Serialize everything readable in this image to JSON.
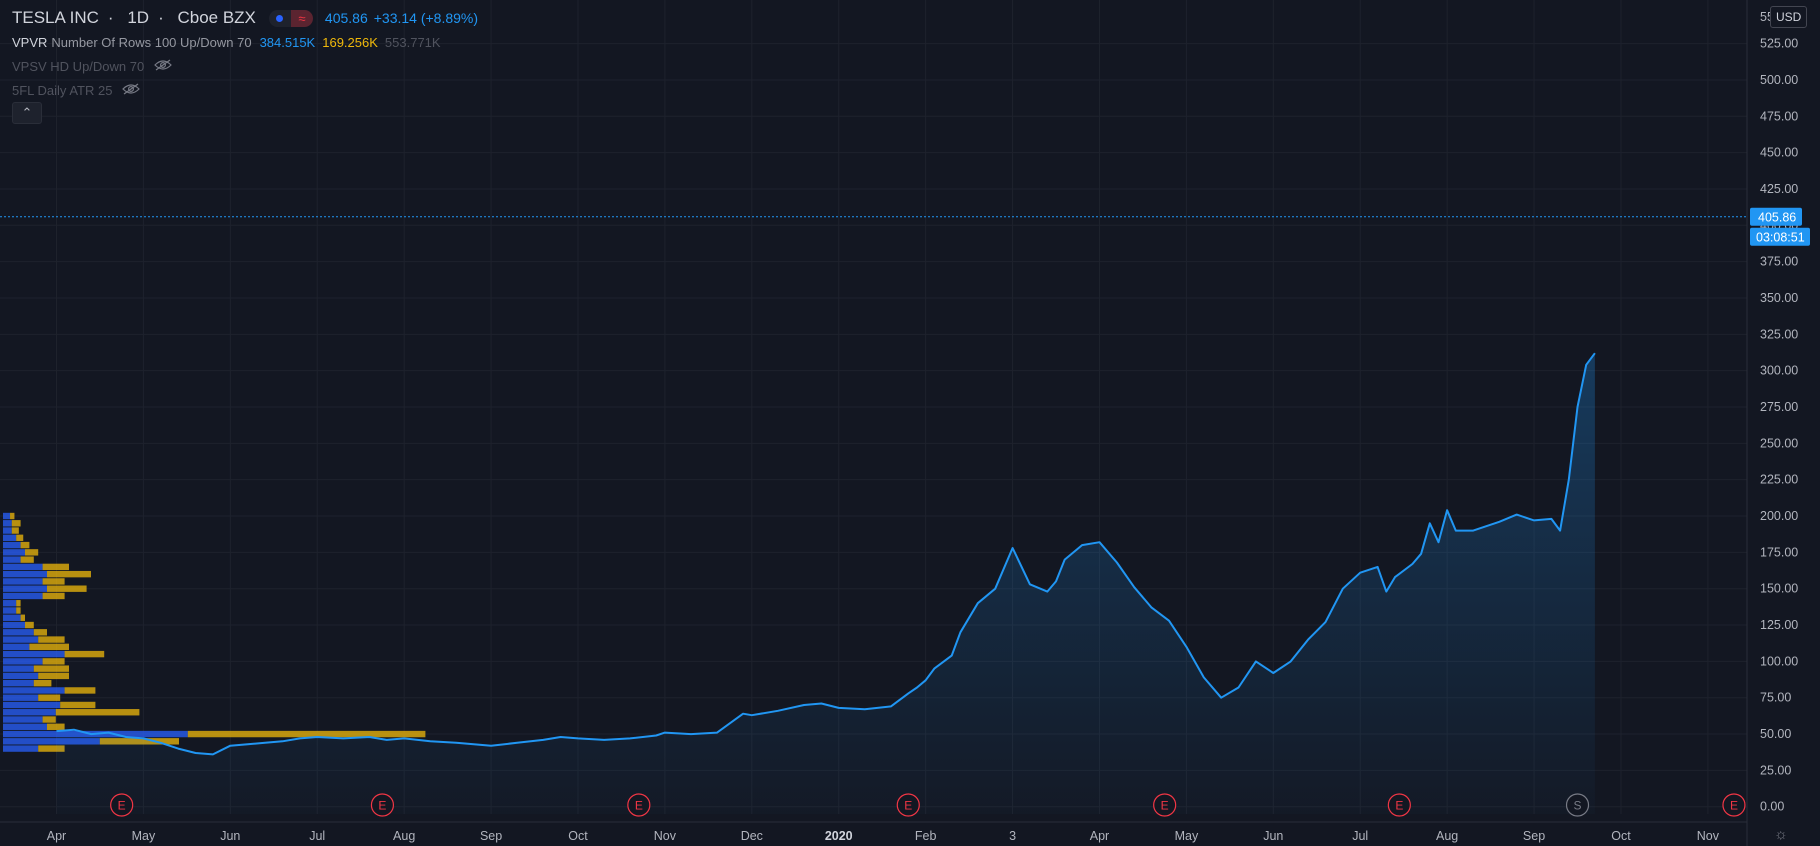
{
  "legend": {
    "symbol": "TESLA INC",
    "interval": "1D",
    "exchange": "Cboe BZX",
    "price": "405.86",
    "change": "+33.14 (+8.89%)"
  },
  "indicators": [
    {
      "name": "VPVR",
      "params": "Number Of Rows 100 Up/Down 70",
      "v1": "384.515K",
      "v2": "169.256K",
      "v3": "553.771K"
    },
    {
      "name": "VPSV HD Up/Down 70"
    },
    {
      "name": "5FL Daily ATR 25"
    }
  ],
  "currency": "USD",
  "price_scale": {
    "current_price": "405.86",
    "countdown": "03:08:51",
    "top_partial_label": "55"
  },
  "colors": {
    "background": "#131722",
    "line": "#2196f3",
    "up_volume": "#2962ff",
    "down_volume": "#f0b90b",
    "earnings": "#f23645",
    "split": "#787b86"
  },
  "chart_data": {
    "type": "area",
    "title": "TESLA INC, 1D, Cboe BZX",
    "ylim": [
      -5,
      555
    ],
    "y_ticks": [
      "0.00",
      "25.00",
      "50.00",
      "75.00",
      "100.00",
      "125.00",
      "150.00",
      "175.00",
      "200.00",
      "225.00",
      "250.00",
      "275.00",
      "300.00",
      "325.00",
      "350.00",
      "375.00",
      "400.00",
      "425.00",
      "450.00",
      "475.00",
      "500.00",
      "525.00"
    ],
    "x_ticks": [
      "Apr",
      "May",
      "Jun",
      "Jul",
      "Aug",
      "Sep",
      "Oct",
      "Nov",
      "Dec",
      "2020",
      "Feb",
      "3",
      "Apr",
      "May",
      "Jun",
      "Jul",
      "Aug",
      "Sep",
      "Oct",
      "Nov"
    ],
    "x_tick_times": [
      0,
      1,
      2,
      3,
      4,
      5,
      6,
      7,
      8,
      9,
      10,
      11,
      12,
      13,
      14,
      15,
      16,
      17,
      18,
      19
    ],
    "series": [
      {
        "name": "TSLA",
        "x": [
          0.0,
          0.2,
          0.4,
          0.6,
          0.8,
          1.0,
          1.2,
          1.4,
          1.6,
          1.8,
          2.0,
          2.2,
          2.4,
          2.6,
          2.8,
          3.0,
          3.3,
          3.6,
          3.8,
          4.0,
          4.3,
          4.6,
          4.8,
          5.0,
          5.3,
          5.6,
          5.8,
          6.0,
          6.3,
          6.6,
          6.9,
          7.0,
          7.3,
          7.6,
          7.9,
          8.0,
          8.3,
          8.6,
          8.8,
          9.0,
          9.3,
          9.6,
          9.8,
          9.9,
          10.0,
          10.1,
          10.3,
          10.4,
          10.6,
          10.8,
          11.0,
          11.2,
          11.4,
          11.5,
          11.6,
          11.8,
          12.0,
          12.2,
          12.4,
          12.6,
          12.8,
          13.0,
          13.2,
          13.4,
          13.6,
          13.8,
          14.0,
          14.2,
          14.4,
          14.6,
          14.8,
          15.0,
          15.2,
          15.3,
          15.4,
          15.6,
          15.7,
          15.8,
          15.9,
          16.0,
          16.1,
          16.3,
          16.6,
          16.8,
          17.0,
          17.2,
          17.3,
          17.4,
          17.5,
          17.6,
          17.7
        ],
        "y": [
          52,
          53,
          50,
          51,
          48,
          47,
          44,
          40,
          37,
          36,
          42,
          43,
          44,
          45,
          47,
          48,
          47,
          48,
          46,
          47,
          45,
          44,
          43,
          42,
          44,
          46,
          48,
          47,
          46,
          47,
          49,
          51,
          50,
          51,
          64,
          63,
          66,
          70,
          71,
          68,
          67,
          69,
          78,
          82,
          87,
          95,
          104,
          120,
          140,
          150,
          178,
          153,
          148,
          155,
          170,
          180,
          182,
          168,
          151,
          137,
          128,
          110,
          89,
          75,
          82,
          100,
          92,
          100,
          115,
          127,
          150,
          161,
          165,
          148,
          158,
          167,
          174,
          195,
          182,
          204,
          190,
          190,
          196,
          201,
          197,
          198,
          190,
          225,
          275,
          304,
          312
        ]
      }
    ],
    "markers": [
      {
        "label": "E",
        "t": 0.75
      },
      {
        "label": "E",
        "t": 3.75
      },
      {
        "label": "E",
        "t": 6.7
      },
      {
        "label": "E",
        "t": 9.8
      },
      {
        "label": "E",
        "t": 12.75
      },
      {
        "label": "E",
        "t": 15.45
      },
      {
        "label": "S",
        "t": 17.5
      },
      {
        "label": "E",
        "t": 19.3
      }
    ],
    "volume_profile": [
      {
        "price": 40,
        "up": 40,
        "down": 30
      },
      {
        "price": 45,
        "up": 110,
        "down": 90
      },
      {
        "price": 50,
        "up": 210,
        "down": 270
      },
      {
        "price": 55,
        "up": 50,
        "down": 20
      },
      {
        "price": 60,
        "up": 45,
        "down": 15
      },
      {
        "price": 65,
        "up": 60,
        "down": 95
      },
      {
        "price": 70,
        "up": 65,
        "down": 40
      },
      {
        "price": 75,
        "up": 40,
        "down": 25
      },
      {
        "price": 80,
        "up": 70,
        "down": 35
      },
      {
        "price": 85,
        "up": 35,
        "down": 20
      },
      {
        "price": 90,
        "up": 40,
        "down": 35
      },
      {
        "price": 95,
        "up": 35,
        "down": 40
      },
      {
        "price": 100,
        "up": 45,
        "down": 25
      },
      {
        "price": 105,
        "up": 70,
        "down": 45
      },
      {
        "price": 110,
        "up": 30,
        "down": 45
      },
      {
        "price": 115,
        "up": 40,
        "down": 30
      },
      {
        "price": 120,
        "up": 35,
        "down": 15
      },
      {
        "price": 125,
        "up": 25,
        "down": 10
      },
      {
        "price": 130,
        "up": 20,
        "down": 5
      },
      {
        "price": 135,
        "up": 15,
        "down": 5
      },
      {
        "price": 140,
        "up": 15,
        "down": 5
      },
      {
        "price": 145,
        "up": 45,
        "down": 25
      },
      {
        "price": 150,
        "up": 50,
        "down": 45
      },
      {
        "price": 155,
        "up": 45,
        "down": 25
      },
      {
        "price": 160,
        "up": 50,
        "down": 50
      },
      {
        "price": 165,
        "up": 45,
        "down": 30
      },
      {
        "price": 170,
        "up": 20,
        "down": 15
      },
      {
        "price": 175,
        "up": 25,
        "down": 15
      },
      {
        "price": 180,
        "up": 20,
        "down": 10
      },
      {
        "price": 185,
        "up": 15,
        "down": 8
      },
      {
        "price": 190,
        "up": 10,
        "down": 8
      },
      {
        "price": 195,
        "up": 10,
        "down": 10
      },
      {
        "price": 200,
        "up": 8,
        "down": 5
      }
    ]
  }
}
